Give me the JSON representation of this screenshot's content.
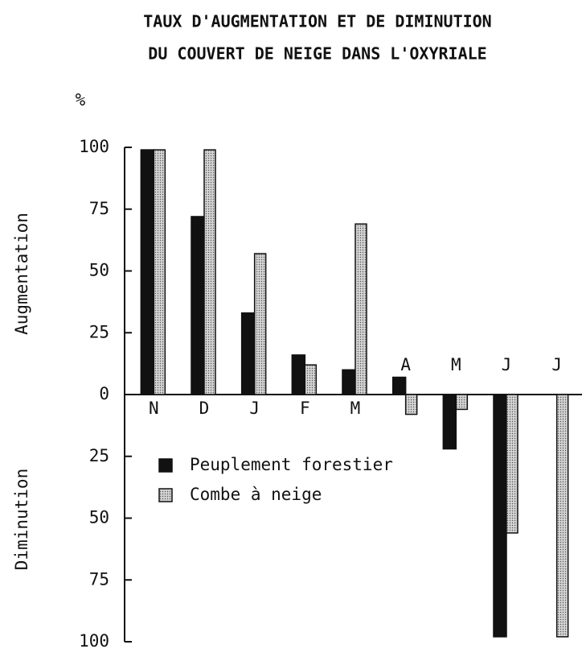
{
  "chart_data": {
    "type": "bar",
    "title": [
      "TAUX D'AUGMENTATION ET DE DIMINUTION",
      "DU COUVERT DE NEIGE DANS L'OXYRIALE"
    ],
    "unit_label": "%",
    "y_labels": [
      "Augmentation",
      "Diminution"
    ],
    "categories": [
      "N",
      "D",
      "J",
      "F",
      "M",
      "A",
      "M",
      "J",
      "J"
    ],
    "series": [
      {
        "name": "Peuplement forestier",
        "color": "#111111",
        "values": [
          99,
          72,
          33,
          16,
          10,
          7,
          -22,
          -98,
          null
        ]
      },
      {
        "name": "Combe à neige",
        "color": "#d4d4d4",
        "values": [
          99,
          99,
          57,
          12,
          69,
          -8,
          -6,
          -56,
          -98
        ]
      }
    ],
    "ylim": [
      -100,
      100
    ],
    "yticks": [
      100,
      75,
      50,
      25,
      0,
      {
        "value": -25,
        "label": "25"
      },
      {
        "value": -50,
        "label": "50"
      },
      {
        "value": -75,
        "label": "75"
      },
      {
        "value": -100,
        "label": "100"
      }
    ],
    "grid": false
  }
}
